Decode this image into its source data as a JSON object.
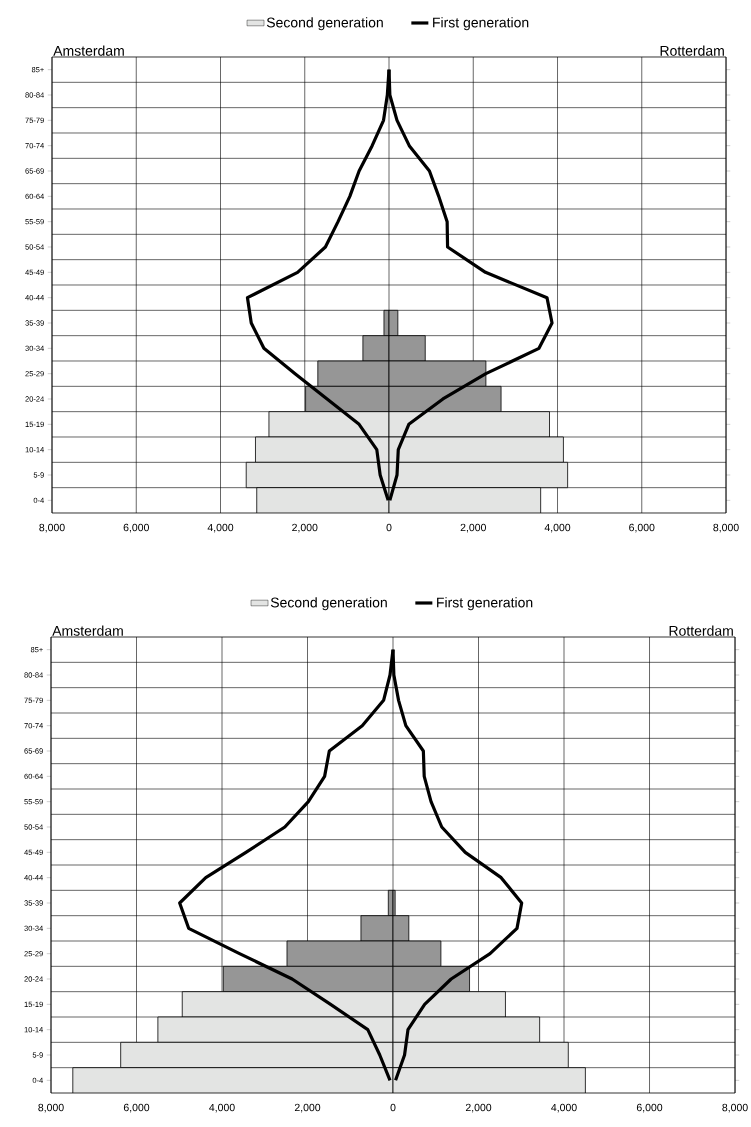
{
  "chart_data": [
    {
      "type": "bar",
      "orientation": "horizontal",
      "categories": [
        "85+",
        "80-84",
        "75-79",
        "70-74",
        "65-69",
        "60-64",
        "55-59",
        "50-54",
        "45-49",
        "40-44",
        "35-39",
        "30-34",
        "25-29",
        "20-24",
        "15-19",
        "10-14",
        "5-9",
        "0-4"
      ],
      "series": [
        {
          "name": "Second generation",
          "color": "#e3e4e3",
          "colors": [
            null,
            null,
            null,
            null,
            null,
            null,
            null,
            null,
            null,
            null,
            "#969696",
            "#969696",
            "#969696",
            "#969696",
            "#e3e4e3",
            "#e3e4e3",
            "#e3e4e3",
            "#e3e4e3"
          ],
          "values": [
            null,
            null,
            null,
            null,
            null,
            null,
            null,
            null,
            null,
            null,
            -120,
            -620,
            -1690,
            -1980,
            -2850,
            -3170,
            -3390,
            -3140
          ]
        },
        {
          "colors": [
            null,
            null,
            null,
            null,
            null,
            null,
            null,
            null,
            null,
            null,
            "#969696",
            "#969696",
            "#969696",
            "#969696",
            "#e3e4e3",
            "#e3e4e3",
            "#e3e4e3",
            "#e3e4e3"
          ],
          "values": [
            null,
            null,
            null,
            null,
            null,
            null,
            null,
            null,
            null,
            null,
            210,
            860,
            2300,
            2660,
            3810,
            4140,
            4240,
            3600
          ]
        },
        {
          "name": "First generation",
          "type": "line",
          "color": "#000000",
          "values": [
            0,
            -40,
            -130,
            -400,
            -710,
            -930,
            -1210,
            -1510,
            -2170,
            -3360,
            -3270,
            -2970,
            -2230,
            -1470,
            -710,
            -290,
            -210,
            -20
          ]
        },
        {
          "type": "line",
          "color": "#000000",
          "values": [
            0,
            20,
            190,
            480,
            960,
            1180,
            1380,
            1390,
            2290,
            3750,
            3870,
            3560,
            2300,
            1280,
            470,
            220,
            190,
            20
          ]
        }
      ],
      "xlim": [
        -8000,
        8000
      ],
      "xticks": [
        {
          "value": -8000,
          "label": "8,000"
        },
        {
          "value": -6000,
          "label": "6,000"
        },
        {
          "value": -4000,
          "label": "4,000"
        },
        {
          "value": -2000,
          "label": "2,000"
        },
        0,
        {
          "value": 2000,
          "label": "2,000"
        },
        {
          "value": 4000,
          "label": "4,000"
        },
        {
          "value": 6000,
          "label": "6,000"
        },
        {
          "value": 8000,
          "label": "8,000"
        }
      ],
      "grid": true,
      "legend": "top",
      "line_style": "solid",
      "annotations": [
        "Amsterdam",
        "Rotterdam"
      ]
    },
    {
      "type": "bar",
      "orientation": "horizontal",
      "categories": [
        "85+",
        "80-84",
        "75-79",
        "70-74",
        "65-69",
        "60-64",
        "55-59",
        "50-54",
        "45-49",
        "40-44",
        "35-39",
        "30-34",
        "25-29",
        "20-24",
        "15-19",
        "10-14",
        "5-9",
        "0-4"
      ],
      "series": [
        {
          "name": "Second generation",
          "color": "#e3e4e3",
          "colors": [
            null,
            null,
            null,
            null,
            null,
            null,
            null,
            null,
            null,
            null,
            "#969696",
            "#969696",
            "#969696",
            "#969696",
            "#e3e4e3",
            "#e3e4e3",
            "#e3e4e3",
            "#e3e4e3"
          ],
          "values": [
            null,
            null,
            null,
            null,
            null,
            null,
            null,
            null,
            null,
            null,
            -110,
            -750,
            -2480,
            -3970,
            -4930,
            -5500,
            -6370,
            -7490
          ]
        },
        {
          "colors": [
            null,
            null,
            null,
            null,
            null,
            null,
            null,
            null,
            null,
            null,
            "#969696",
            "#969696",
            "#969696",
            "#969696",
            "#e3e4e3",
            "#e3e4e3",
            "#e3e4e3",
            "#e3e4e3"
          ],
          "values": [
            null,
            null,
            null,
            null,
            null,
            null,
            null,
            null,
            null,
            null,
            50,
            370,
            1120,
            1790,
            2630,
            3430,
            4100,
            4500
          ]
        },
        {
          "name": "First generation",
          "type": "line",
          "color": "#000000",
          "values": [
            0,
            -70,
            -220,
            -720,
            -1490,
            -1600,
            -1980,
            -2530,
            -3440,
            -4380,
            -4990,
            -4780,
            -3590,
            -2360,
            -1460,
            -590,
            -310,
            -70
          ]
        },
        {
          "type": "line",
          "color": "#000000",
          "values": [
            0,
            20,
            130,
            300,
            710,
            730,
            890,
            1140,
            1690,
            2530,
            3010,
            2900,
            2270,
            1360,
            740,
            350,
            270,
            60
          ]
        }
      ],
      "xlim": [
        -8000,
        8000
      ],
      "xticks": [
        {
          "value": -8000,
          "label": "8,000"
        },
        {
          "value": -6000,
          "label": "6,000"
        },
        {
          "value": -4000,
          "label": "4,000"
        },
        {
          "value": -2000,
          "label": "2,000"
        },
        0,
        {
          "value": 2000,
          "label": "2,000"
        },
        {
          "value": 4000,
          "label": "4,000"
        },
        {
          "value": 6000,
          "label": "6,000"
        },
        {
          "value": 8000,
          "label": "8,000"
        }
      ],
      "grid": true,
      "legend": "top",
      "line_style": "solid",
      "annotations": [
        "Amsterdam",
        "Rotterdam"
      ]
    }
  ]
}
